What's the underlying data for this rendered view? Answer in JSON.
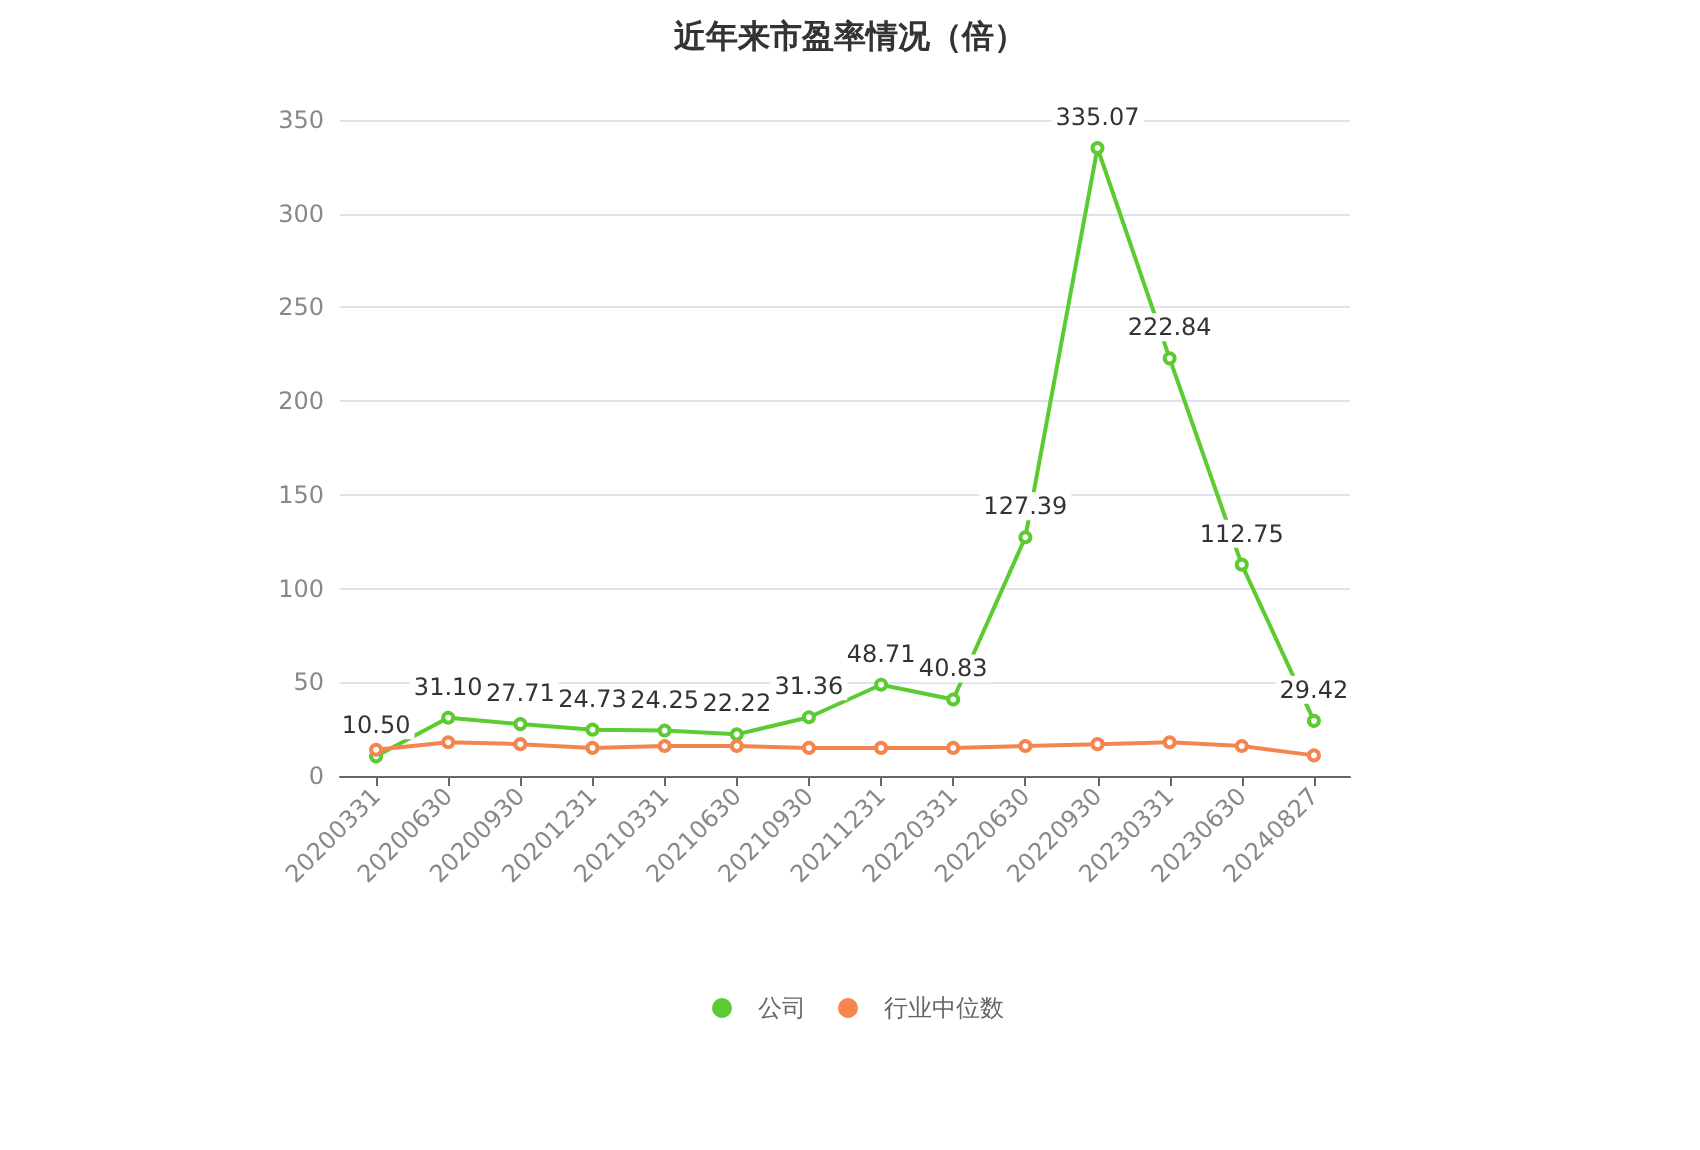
{
  "chart_data": {
    "type": "line",
    "title": "近年来市盈率情况（倍）",
    "categories": [
      "20200331",
      "20200630",
      "20200930",
      "20201231",
      "20210331",
      "20210630",
      "20210930",
      "20211231",
      "20220331",
      "20220630",
      "20220930",
      "20230331",
      "20230630",
      "20240827"
    ],
    "series": [
      {
        "name": "公司",
        "color": "#5ccb32",
        "values": [
          10.5,
          31.1,
          27.71,
          24.73,
          24.25,
          22.22,
          31.36,
          48.71,
          40.83,
          127.39,
          335.07,
          222.84,
          112.75,
          29.42
        ],
        "value_labels": [
          "10.50",
          "31.10",
          "27.71",
          "24.73",
          "24.25",
          "22.22",
          "31.36",
          "48.71",
          "40.83",
          "127.39",
          "335.07",
          "222.84",
          "112.75",
          "29.42"
        ]
      },
      {
        "name": "行业中位数",
        "color": "#f5854f",
        "values": [
          14,
          18,
          17,
          15,
          16,
          16,
          15,
          15,
          15,
          16,
          17,
          18,
          16,
          11
        ]
      }
    ],
    "ylim": [
      0,
      350
    ],
    "yticks": [
      0,
      50,
      100,
      150,
      200,
      250,
      300,
      350
    ],
    "grid": "y",
    "legend": "bottom",
    "marker": "circle",
    "line_style": "solid"
  }
}
